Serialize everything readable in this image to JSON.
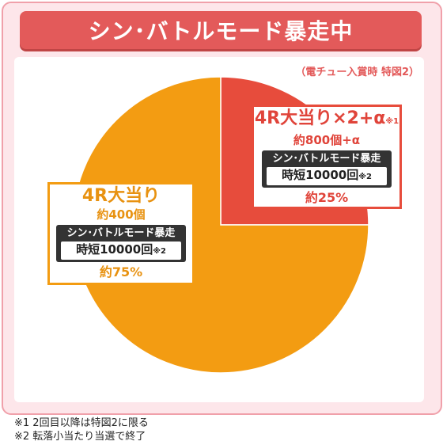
{
  "title": "シン･バトルモード暴走中",
  "note_top": "（電チュー入賞時 特図2）",
  "colors": {
    "big_slice": "#f39c12",
    "small_slice": "#e74c3c",
    "title_bg": "#e35a5a",
    "frame_bg": "#fde6ea"
  },
  "big_label": {
    "title": "4R大当り",
    "sub": "約400個",
    "mode": "シン･バトルモード暴走",
    "jitan": "時短10000回",
    "jitan_note": "※2",
    "pct": "約75%"
  },
  "small_label": {
    "title": "4R大当り×2+α",
    "title_note": "※1",
    "sub": "約800個+α",
    "mode": "シン･バトルモード暴走",
    "jitan": "時短10000回",
    "jitan_note": "※2",
    "pct": "約25%"
  },
  "chart_data": {
    "type": "pie",
    "slices": [
      {
        "label": "4R大当り×2+α",
        "value": 25
      },
      {
        "label": "4R大当り",
        "value": 75
      }
    ]
  },
  "footnotes": [
    "※1  2回目以降は特図2に限る",
    "※2  転落小当たり当選で終了"
  ]
}
